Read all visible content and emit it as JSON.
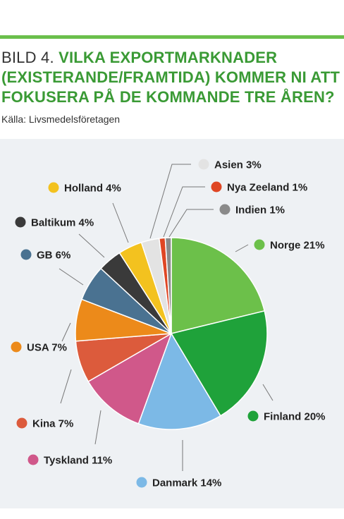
{
  "header": {
    "bild": "BILD 4.",
    "question": "VILKA EXPORTMARKNADER (EXISTERANDE/FRAMTIDA) KOMMER NI ATT FOKUSERA PÅ DE KOMMANDE TRE ÅREN?",
    "source": "Källa: Livsmedelsföretagen"
  },
  "chart_data": {
    "type": "pie",
    "unit": "%",
    "slices": [
      {
        "name": "Norge",
        "value": 21,
        "label": "Norge 21%",
        "color": "#6cc04a"
      },
      {
        "name": "Finland",
        "value": 20,
        "label": "Finland 20%",
        "color": "#1fa23a"
      },
      {
        "name": "Danmark",
        "value": 14,
        "label": "Danmark 14%",
        "color": "#7cb9e6"
      },
      {
        "name": "Tyskland",
        "value": 11,
        "label": "Tyskland 11%",
        "color": "#d0588a"
      },
      {
        "name": "Kina",
        "value": 7,
        "label": "Kina 7%",
        "color": "#dc5b3c"
      },
      {
        "name": "USA",
        "value": 7,
        "label": "USA 7%",
        "color": "#ec8a1a"
      },
      {
        "name": "GB",
        "value": 6,
        "label": "GB 6%",
        "color": "#4a7291"
      },
      {
        "name": "Baltikum",
        "value": 4,
        "label": "Baltikum 4%",
        "color": "#3a3a3a"
      },
      {
        "name": "Holland",
        "value": 4,
        "label": "Holland 4%",
        "color": "#f3c21f"
      },
      {
        "name": "Asien",
        "value": 3,
        "label": "Asien 3%",
        "color": "#e3e3e3"
      },
      {
        "name": "Nya Zeeland",
        "value": 1,
        "label": "Nya Zeeland 1%",
        "color": "#df4624"
      },
      {
        "name": "Indien",
        "value": 1,
        "label": "Indien 1%",
        "color": "#8a8a8a"
      }
    ]
  }
}
